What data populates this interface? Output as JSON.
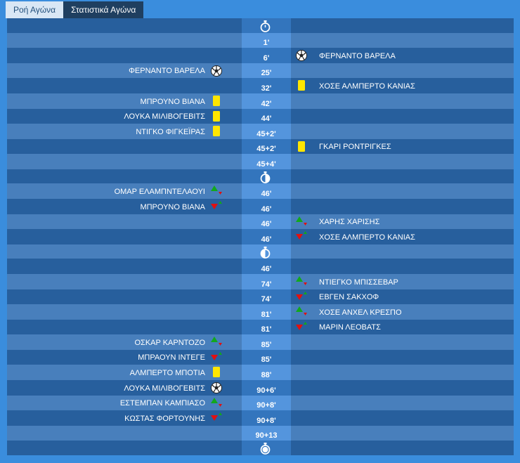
{
  "tabs": [
    {
      "label": "Ροή Αγώνα",
      "active": false
    },
    {
      "label": "Στατιστικά Αγώνα",
      "active": true
    }
  ],
  "colors": {
    "yellow_card": "#ffe600",
    "sub_in": "#12a81c",
    "sub_out": "#e01010",
    "panel": "#2d6db3",
    "frame": "#3a8ddd"
  },
  "rows": [
    {
      "type": "phase",
      "icon": "stopwatch-icon"
    },
    {
      "time": "1'"
    },
    {
      "time": "6'",
      "right": {
        "name": "ΦΕΡΝΑΝΤΟ ΒΑΡΕΛΑ",
        "icon": "goal"
      }
    },
    {
      "time": "25'",
      "left": {
        "name": "ΦΕΡΝΑΝΤΟ ΒΑΡΕΛΑ",
        "icon": "goal"
      }
    },
    {
      "time": "32'",
      "right": {
        "name": "ΧΟΣΕ ΑΛΜΠΕΡΤΟ ΚΑΝΙΑΣ",
        "icon": "yellow"
      }
    },
    {
      "time": "42'",
      "left": {
        "name": "ΜΠΡΟΥΝΟ ΒΙΑΝΑ",
        "icon": "yellow"
      }
    },
    {
      "time": "44'",
      "left": {
        "name": "ΛΟΥΚΑ ΜΙΛΙΒΟΓΕΒΙΤΣ",
        "icon": "yellow"
      }
    },
    {
      "time": "45+2'",
      "left": {
        "name": "ΝΤΙΓΚΟ ΦΙΓΚΕΪΡΑΣ",
        "icon": "yellow"
      }
    },
    {
      "time": "45+2'",
      "right": {
        "name": "ΓΚΑΡΙ ΡΟΝΤΡΙΓΚΕΣ",
        "icon": "yellow"
      }
    },
    {
      "time": "45+4'"
    },
    {
      "type": "phase",
      "icon": "halftime-stopwatch-icon"
    },
    {
      "time": "46'",
      "left": {
        "name": "ΟΜΑΡ ΕΛΑΜΠΝΤΕΛΑΟΥΙ",
        "icon": "sub-in"
      }
    },
    {
      "time": "46'",
      "left": {
        "name": "ΜΠΡΟΥΝΟ ΒΙΑΝΑ",
        "icon": "sub-out"
      }
    },
    {
      "time": "46'",
      "right": {
        "name": "ΧΑΡΗΣ ΧΑΡΙΣΗΣ",
        "icon": "sub-in"
      }
    },
    {
      "time": "46'",
      "right": {
        "name": "ΧΟΣΕ ΑΛΜΠΕΡΤΟ ΚΑΝΙΑΣ",
        "icon": "sub-out"
      }
    },
    {
      "type": "phase",
      "icon": "second-half-stopwatch-icon"
    },
    {
      "time": "46'"
    },
    {
      "time": "74'",
      "right": {
        "name": "ΝΤΙΕΓΚΟ ΜΠΙΣΣΕΒΑΡ",
        "icon": "sub-in"
      }
    },
    {
      "time": "74'",
      "right": {
        "name": "ΕΒΓΕΝ ΣΑΚΧΟΦ",
        "icon": "sub-out"
      }
    },
    {
      "time": "81'",
      "right": {
        "name": "ΧΟΣΕ ΑΝΧΕΛ ΚΡΕΣΠΟ",
        "icon": "sub-in"
      }
    },
    {
      "time": "81'",
      "right": {
        "name": "ΜΑΡΙΝ ΛΕΟΒΑΤΣ",
        "icon": "sub-out"
      }
    },
    {
      "time": "85'",
      "left": {
        "name": "ΟΣΚΑΡ ΚΑΡΝΤΟΖΟ",
        "icon": "sub-in"
      }
    },
    {
      "time": "85'",
      "left": {
        "name": "ΜΠΡΑΟΥΝ ΙΝΤΕΓΕ",
        "icon": "sub-out"
      }
    },
    {
      "time": "88'",
      "left": {
        "name": "ΑΛΜΠΕΡΤΟ ΜΠΟΤΙΑ",
        "icon": "yellow"
      }
    },
    {
      "time": "90+6'",
      "left": {
        "name": "ΛΟΥΚΑ ΜΙΛΙΒΟΓΕΒΙΤΣ",
        "icon": "goal"
      }
    },
    {
      "time": "90+8'",
      "left": {
        "name": "ΕΣΤΕΜΠΑΝ ΚΑΜΠΙΑΣΟ",
        "icon": "sub-in"
      }
    },
    {
      "time": "90+8'",
      "left": {
        "name": "ΚΩΣΤΑΣ ΦΟΡΤΟΥΝΗΣ",
        "icon": "sub-out"
      }
    },
    {
      "time": "90+13"
    },
    {
      "type": "phase",
      "icon": "full-time-stopwatch-icon"
    }
  ]
}
